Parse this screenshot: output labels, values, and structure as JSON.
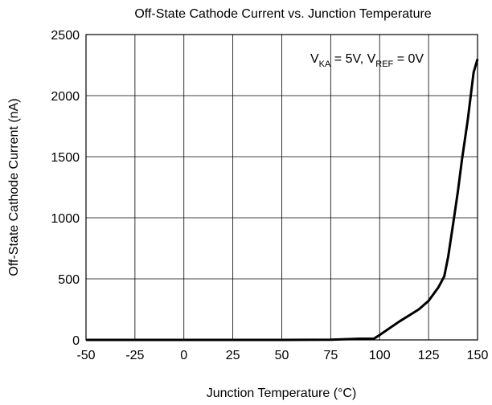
{
  "chart_data": {
    "type": "line",
    "title": "Off-State Cathode Current vs. Junction Temperature",
    "xlabel": "Junction Temperature (°C)",
    "ylabel": "Off-State Cathode Current (nA)",
    "annotation": [
      "V",
      "KA",
      " = 5V, V",
      "REF",
      " = 0V"
    ],
    "x": [
      -50,
      -25,
      0,
      25,
      50,
      75,
      87,
      90,
      97,
      100,
      110,
      120,
      125,
      130,
      133,
      135,
      138,
      140,
      142,
      145,
      148,
      150
    ],
    "series": [
      {
        "name": "Off-State Cathode Current",
        "color": "#000000",
        "values": [
          0,
          0,
          0,
          0,
          0,
          2,
          8,
          10,
          10,
          40,
          150,
          250,
          320,
          430,
          520,
          680,
          1000,
          1220,
          1470,
          1800,
          2190,
          2300
        ]
      }
    ],
    "xlim": [
      -50,
      150
    ],
    "xticks": [
      -50,
      -25,
      0,
      25,
      50,
      75,
      100,
      125,
      150
    ],
    "ylim": [
      0,
      2500
    ],
    "yticks": [
      0,
      500,
      1000,
      1500,
      2000,
      2500
    ],
    "grid": true
  }
}
